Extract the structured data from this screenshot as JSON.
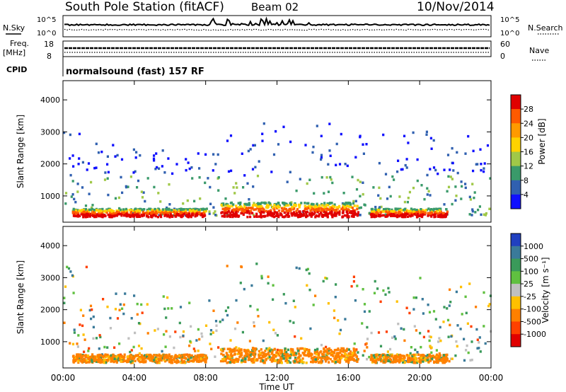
{
  "header": {
    "station": "South Pole Station (fitACF)",
    "beam": "Beam 02",
    "date": "10/Nov/2014"
  },
  "top_strip": {
    "nsky_label": "N.Sky",
    "nsearch_label": "N.Search",
    "noise_ticks_left": [
      "10^5",
      "10^0"
    ],
    "noise_ticks_right": [
      "10^5",
      "10^0"
    ],
    "freq_label": "Freq.",
    "freq_unit": "[MHz]",
    "freq_ticks": [
      "18",
      "8"
    ],
    "nave_label": "Nave",
    "nave_ticks": [
      "60",
      "0"
    ],
    "cpid_label": "CPID",
    "cpid_text": "normalsound (fast) 157 RF"
  },
  "chart_data": [
    {
      "type": "heatmap",
      "panel": "power",
      "ylabel": "Slant Range [km]",
      "ylim": [
        180,
        4600
      ],
      "y_ticks": [
        1000,
        2000,
        3000,
        4000
      ],
      "x_ticks": [
        "00:00",
        "04:00",
        "08:00",
        "12:00",
        "16:00",
        "20:00",
        "00:00"
      ],
      "xlim_hours": [
        0,
        24
      ],
      "colorbar_label": "Power [dB]",
      "colorbar_ticks": [
        "28",
        "24",
        "20",
        "16",
        "12",
        "8",
        "4"
      ],
      "colorbar_colors": [
        "#e00000",
        "#ff5a00",
        "#ff9a00",
        "#ffd200",
        "#a0c848",
        "#3a9a6a",
        "#3060b0",
        "#1010ff"
      ],
      "grid": false
    },
    {
      "type": "heatmap",
      "panel": "velocity",
      "ylabel": "Slant Range [km]",
      "ylim": [
        180,
        4600
      ],
      "y_ticks": [
        1000,
        2000,
        3000,
        4000
      ],
      "x_ticks": [
        "00:00",
        "04:00",
        "08:00",
        "12:00",
        "16:00",
        "20:00",
        "00:00"
      ],
      "xlim_hours": [
        0,
        24
      ],
      "xlabel": "Time UT",
      "colorbar_label": "Velocity [m s⁻¹]",
      "colorbar_ticks": [
        "1000",
        "500",
        "100",
        "25",
        "-25",
        "-100",
        "-500",
        "-1000"
      ],
      "colorbar_colors": [
        "#2040c0",
        "#3a7a9a",
        "#3a9a5a",
        "#60c040",
        "#c0c0c0",
        "#ffc000",
        "#ff8000",
        "#ff4000",
        "#e00000"
      ],
      "grid": false
    }
  ]
}
